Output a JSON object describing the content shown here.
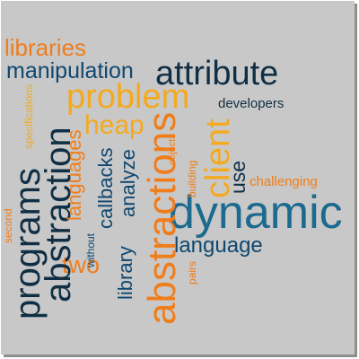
{
  "colors": {
    "background": "#c8c8c8",
    "shadow": "#8e8e8e",
    "orange": "#f07d1b",
    "yellow": "#f5a91d",
    "blue": "#1c6a8f",
    "dark": "#102f45",
    "navy": "#0f4770"
  },
  "words": {
    "libraries": "libraries",
    "manipulation": "manipulation",
    "attribute": "attribute",
    "problem": "problem",
    "developers": "developers",
    "specifications": "specifications",
    "abstraction": "abstraction",
    "heap": "heap",
    "languages": "languages",
    "callbacks": "callbacks",
    "analyze": "analyze",
    "abstractions": "abstractions",
    "objects": "objects",
    "building": "building",
    "client": "client",
    "use": "use",
    "challenging": "challenging",
    "programs": "programs",
    "second": "second",
    "without": "without",
    "library": "library",
    "pairs": "pairs",
    "dynamic": "dynamic",
    "language": "language",
    "two": "two"
  }
}
